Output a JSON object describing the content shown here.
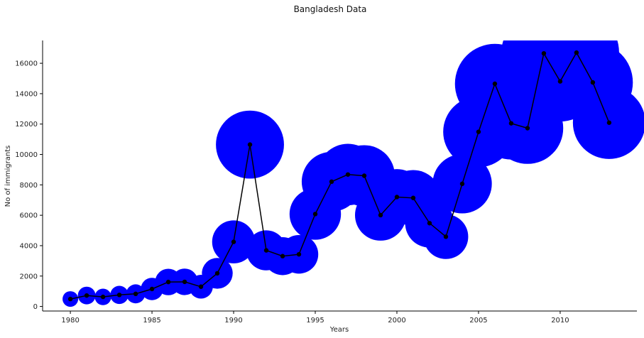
{
  "chart_data": {
    "type": "scatter",
    "title": "Bangladesh Data",
    "xlabel": "Years",
    "ylabel": "No of immigrants",
    "xlim": [
      1978.3,
      2014.7
    ],
    "ylim": [
      -300,
      17500
    ],
    "xticks": [
      1980,
      1985,
      1990,
      1995,
      2000,
      2005,
      2010
    ],
    "yticks": [
      0,
      2000,
      4000,
      6000,
      8000,
      10000,
      12000,
      14000,
      16000
    ],
    "grid": false,
    "legend": "none",
    "bubble_color": "#0000ff",
    "line_color": "#000000",
    "x": [
      1980,
      1981,
      1982,
      1983,
      1984,
      1985,
      1986,
      1987,
      1988,
      1989,
      1990,
      1991,
      1992,
      1993,
      1994,
      1995,
      1996,
      1997,
      1998,
      1999,
      2000,
      2001,
      2002,
      2003,
      2004,
      2005,
      2006,
      2007,
      2008,
      2009,
      2010,
      2011,
      2012,
      2013
    ],
    "y": [
      490,
      720,
      630,
      760,
      830,
      1150,
      1610,
      1620,
      1300,
      2180,
      4250,
      10650,
      3690,
      3310,
      3430,
      6080,
      8210,
      8680,
      8600,
      6010,
      7200,
      7140,
      5480,
      4590,
      8070,
      11490,
      14650,
      12050,
      11730,
      16650,
      14810,
      16700,
      14740,
      12090
    ]
  }
}
